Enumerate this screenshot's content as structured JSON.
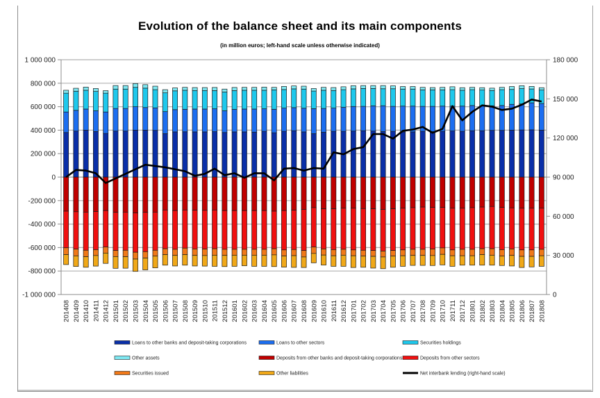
{
  "chart_data": {
    "type": "bar",
    "stacked": true,
    "title": "Evolution of the balance sheet and its main components",
    "subtitle": "(in million euros; left-hand scale unless otherwise indicated)",
    "xlabel": "",
    "ylabel": "",
    "ylim": [
      -1000000,
      1000000
    ],
    "y2lim": [
      0,
      180000
    ],
    "grid": true,
    "legend_position": "bottom",
    "left_ticks": [
      "1 000 000",
      "800 000",
      "600 000",
      "400 000",
      "200 000",
      "0",
      "-200 000",
      "-400 000",
      "-600 000",
      "-800 000",
      "-1 000 000"
    ],
    "left_tick_values": [
      1000000,
      800000,
      600000,
      400000,
      200000,
      0,
      -200000,
      -400000,
      -600000,
      -800000,
      -1000000
    ],
    "right_ticks": [
      "180 000",
      "150 000",
      "120 000",
      "90 000",
      "60 000",
      "30 000",
      "0"
    ],
    "right_tick_values": [
      180000,
      150000,
      120000,
      90000,
      60000,
      30000,
      0
    ],
    "categories": [
      "201408",
      "201409",
      "201410",
      "201411",
      "201412",
      "201501",
      "201502",
      "201503",
      "201504",
      "201505",
      "201506",
      "201507",
      "201508",
      "201509",
      "201510",
      "201511",
      "201512",
      "201601",
      "201602",
      "201603",
      "201604",
      "201605",
      "201606",
      "201607",
      "201608",
      "201609",
      "201610",
      "201611",
      "201612",
      "201701",
      "201702",
      "201703",
      "201704",
      "201705",
      "201706",
      "201707",
      "201708",
      "201709",
      "201710",
      "201711",
      "201712",
      "201801",
      "201802",
      "201803",
      "201804",
      "201805",
      "201806",
      "201807",
      "201808"
    ],
    "series": [
      {
        "name": "Loans to other banks and deposit-taking corporations",
        "color": "#0a2fa8",
        "axis": "left",
        "values": [
          380000,
          392000,
          400000,
          388000,
          372000,
          392000,
          392000,
          400000,
          400000,
          398000,
          370000,
          385000,
          386000,
          385000,
          385000,
          387000,
          380000,
          385000,
          385000,
          383000,
          390000,
          378000,
          390000,
          395000,
          385000,
          370000,
          382000,
          390000,
          390000,
          392000,
          395000,
          392000,
          388000,
          390000,
          385000,
          385000,
          390000,
          388000,
          390000,
          393000,
          390000,
          395000,
          395000,
          398000,
          398000,
          400000,
          402000,
          403000,
          400000
        ]
      },
      {
        "name": "Loans to other sectors",
        "color": "#1c6ef0",
        "axis": "left",
        "values": [
          175000,
          177000,
          180000,
          177000,
          183000,
          193000,
          193000,
          200000,
          193000,
          192000,
          188000,
          190000,
          192000,
          195000,
          195000,
          195000,
          185000,
          192000,
          195000,
          197000,
          192000,
          200000,
          198000,
          197000,
          202000,
          213000,
          203000,
          198000,
          205000,
          210000,
          208000,
          215000,
          220000,
          213000,
          220000,
          220000,
          213000,
          215000,
          215000,
          212000,
          215000,
          215000,
          212000,
          210000,
          212000,
          220000,
          222000,
          230000,
          227000
        ]
      },
      {
        "name": "Securities holdings",
        "color": "#1ec8ec",
        "axis": "left",
        "values": [
          160000,
          163000,
          160000,
          165000,
          160000,
          165000,
          165000,
          165000,
          165000,
          155000,
          160000,
          160000,
          162000,
          158000,
          158000,
          155000,
          160000,
          160000,
          160000,
          160000,
          158000,
          165000,
          158000,
          160000,
          163000,
          150000,
          155000,
          150000,
          150000,
          150000,
          152000,
          148000,
          145000,
          150000,
          145000,
          145000,
          140000,
          140000,
          138000,
          140000,
          135000,
          135000,
          135000,
          130000,
          135000,
          127000,
          130000,
          118000,
          115000
        ]
      },
      {
        "name": "Other assets",
        "color": "#7ee8f2",
        "axis": "left",
        "values": [
          25000,
          25000,
          27000,
          25000,
          22000,
          30000,
          30000,
          32000,
          30000,
          30000,
          27000,
          25000,
          25000,
          25000,
          25000,
          27000,
          25000,
          27000,
          25000,
          25000,
          27000,
          22000,
          27000,
          25000,
          25000,
          22000,
          25000,
          25000,
          25000,
          27000,
          25000,
          25000,
          27000,
          25000,
          22000,
          22000,
          22000,
          20000,
          22000,
          25000,
          22000,
          20000,
          20000,
          20000,
          20000,
          25000,
          25000,
          22000,
          20000
        ]
      },
      {
        "name": "Deposits from other banks and deposit-taking corporations",
        "color": "#c00000",
        "axis": "left",
        "values": [
          -290000,
          -295000,
          -298000,
          -293000,
          -285000,
          -300000,
          -298000,
          -305000,
          -300000,
          -298000,
          -280000,
          -285000,
          -280000,
          -282000,
          -283000,
          -280000,
          -285000,
          -285000,
          -285000,
          -285000,
          -285000,
          -290000,
          -285000,
          -282000,
          -275000,
          -260000,
          -270000,
          -270000,
          -265000,
          -265000,
          -268000,
          -270000,
          -275000,
          -270000,
          -265000,
          -260000,
          -255000,
          -258000,
          -258000,
          -265000,
          -265000,
          -260000,
          -255000,
          -250000,
          -258000,
          -262000,
          -265000,
          -265000,
          -265000
        ]
      },
      {
        "name": "Deposits from other sectors",
        "color": "#f01010",
        "axis": "left",
        "values": [
          -312000,
          -318000,
          -325000,
          -325000,
          -310000,
          -325000,
          -325000,
          -335000,
          -335000,
          -325000,
          -330000,
          -330000,
          -325000,
          -330000,
          -330000,
          -330000,
          -330000,
          -330000,
          -330000,
          -330000,
          -330000,
          -320000,
          -335000,
          -335000,
          -350000,
          -335000,
          -342000,
          -348000,
          -350000,
          -355000,
          -355000,
          -355000,
          -355000,
          -355000,
          -355000,
          -355000,
          -360000,
          -355000,
          -345000,
          -355000,
          -350000,
          -355000,
          -355000,
          -360000,
          -360000,
          -350000,
          -355000,
          -355000,
          -350000
        ]
      },
      {
        "name": "Securities issued",
        "color": "#f07818",
        "axis": "left",
        "values": [
          -58000,
          -58000,
          -55000,
          -50000,
          -52000,
          -52000,
          -55000,
          -58000,
          -55000,
          -50000,
          -50000,
          -52000,
          -55000,
          -55000,
          -55000,
          -55000,
          -52000,
          -50000,
          -50000,
          -50000,
          -50000,
          -52000,
          -52000,
          -52000,
          -55000,
          -55000,
          -52000,
          -52000,
          -50000,
          -50000,
          -50000,
          -50000,
          -50000,
          -48000,
          -50000,
          -52000,
          -52000,
          -55000,
          -55000,
          -50000,
          -55000,
          -55000,
          -50000,
          -55000,
          -55000,
          -55000,
          -55000,
          -55000,
          -55000
        ]
      },
      {
        "name": "Other liabilities",
        "color": "#f0a818",
        "axis": "left",
        "values": [
          -85000,
          -90000,
          -90000,
          -90000,
          -88000,
          -100000,
          -98000,
          -105000,
          -100000,
          -100000,
          -90000,
          -90000,
          -90000,
          -90000,
          -90000,
          -95000,
          -95000,
          -95000,
          -90000,
          -95000,
          -95000,
          -100000,
          -95000,
          -100000,
          -90000,
          -80000,
          -85000,
          -90000,
          -95000,
          -100000,
          -95000,
          -100000,
          -100000,
          -95000,
          -90000,
          -85000,
          -85000,
          -85000,
          -90000,
          -90000,
          -80000,
          -80000,
          -90000,
          -85000,
          -80000,
          -90000,
          -95000,
          -90000,
          -90000
        ]
      },
      {
        "name": "Net interbank lending (right-hand scale)",
        "color": "#000000",
        "axis": "right",
        "type": "line",
        "values": [
          90000,
          95500,
          95000,
          93000,
          85500,
          89000,
          92500,
          96000,
          99500,
          98500,
          97500,
          96000,
          94500,
          91000,
          92500,
          96500,
          91500,
          93000,
          89500,
          93000,
          93000,
          87500,
          96500,
          97000,
          95000,
          97000,
          96500,
          109000,
          107500,
          111500,
          113000,
          123000,
          123000,
          119500,
          125500,
          126500,
          128500,
          124000,
          127000,
          144500,
          133500,
          140000,
          145000,
          144000,
          141500,
          142500,
          145500,
          149500,
          148000
        ]
      }
    ]
  }
}
